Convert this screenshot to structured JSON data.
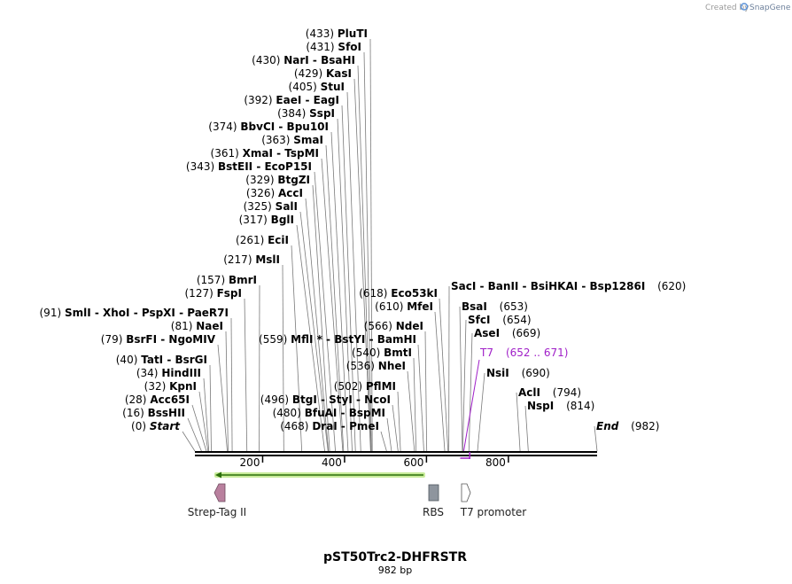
{
  "credit": {
    "prefix": "Created by",
    "brand": "SnapGene"
  },
  "title": "pST50Trc2-DHFRSTR",
  "subtitle": "982 bp",
  "sequence_length": 982,
  "ticks": [
    {
      "pos": 200,
      "label": "200"
    },
    {
      "pos": 400,
      "label": "400"
    },
    {
      "pos": 600,
      "label": "600"
    },
    {
      "pos": 800,
      "label": "800"
    }
  ],
  "orf": {
    "start": 50,
    "end": 560,
    "direction": "reverse",
    "color": "#6fc21e"
  },
  "features": [
    {
      "name": "Strep-Tag II",
      "shape": "arrow-left",
      "color": "#b9809e"
    },
    {
      "name": "RBS",
      "shape": "box",
      "color": "#8e959e"
    },
    {
      "name": "T7 promoter",
      "shape": "arrow-right",
      "color": "#ffffff"
    }
  ],
  "t7_site": {
    "name": "T7",
    "range": "(652 .. 671)",
    "start": 652,
    "end": 671,
    "color": "#a020c8"
  },
  "left_labels": [
    {
      "pos": "(433)",
      "name": "PluTI",
      "loc": 433
    },
    {
      "pos": "(431)",
      "name": "SfoI",
      "loc": 431
    },
    {
      "pos": "(430)",
      "name": "NarI  -  BsaHI",
      "loc": 430
    },
    {
      "pos": "(429)",
      "name": "KasI",
      "loc": 429
    },
    {
      "pos": "(405)",
      "name": "StuI",
      "loc": 405
    },
    {
      "pos": "(392)",
      "name": "EaeI  -  EagI",
      "loc": 392
    },
    {
      "pos": "(384)",
      "name": "SspI",
      "loc": 384
    },
    {
      "pos": "(374)",
      "name": "BbvCI  -  Bpu10I",
      "loc": 374
    },
    {
      "pos": "(363)",
      "name": "SmaI",
      "loc": 363
    },
    {
      "pos": "(361)",
      "name": "XmaI  -  TspMI",
      "loc": 361
    },
    {
      "pos": "(343)",
      "name": "BstEII  -  EcoP15I",
      "loc": 343
    },
    {
      "pos": "(329)",
      "name": "BtgZI",
      "loc": 329
    },
    {
      "pos": "(326)",
      "name": "AccI",
      "loc": 326
    },
    {
      "pos": "(325)",
      "name": "SalI",
      "loc": 325
    },
    {
      "pos": "(317)",
      "name": "BglI",
      "loc": 317
    },
    {
      "pos": "(261)",
      "name": "EciI",
      "loc": 261
    },
    {
      "pos": "(217)",
      "name": "MslI",
      "loc": 217
    },
    {
      "pos": "(157)",
      "name": "BmrI",
      "loc": 157
    },
    {
      "pos": "(127)",
      "name": "FspI",
      "loc": 127
    },
    {
      "pos": "(91)",
      "name": "SmlI  -  XhoI  -  PspXI  -  PaeR7I",
      "loc": 91
    },
    {
      "pos": "(81)",
      "name": "NaeI",
      "loc": 81
    },
    {
      "pos": "(79)",
      "name": "BsrFI  -  NgoMIV",
      "loc": 79
    },
    {
      "pos": "(40)",
      "name": "TatI  -  BsrGI",
      "loc": 40
    },
    {
      "pos": "(34)",
      "name": "HindIII",
      "loc": 34
    },
    {
      "pos": "(32)",
      "name": "KpnI",
      "loc": 32
    },
    {
      "pos": "(28)",
      "name": "Acc65I",
      "loc": 28
    },
    {
      "pos": "(16)",
      "name": "BssHII",
      "loc": 16
    },
    {
      "pos": "(0)",
      "name": "Start",
      "loc": 0,
      "italic": true
    }
  ],
  "mid_labels": [
    {
      "pos": "(559)",
      "name": "MflI *  -  BstYI  -  BamHI",
      "loc": 559
    },
    {
      "pos": "(496)",
      "name": "BtgI  -  StyI  -  NcoI",
      "loc": 496
    },
    {
      "pos": "(480)",
      "name": "BfuAI  -  BspMI",
      "loc": 480
    },
    {
      "pos": "(468)",
      "name": "DraI  -  PmeI",
      "loc": 468
    }
  ],
  "inner_labels": [
    {
      "pos": "(618)",
      "name": "Eco53kI",
      "loc": 618
    },
    {
      "pos": "(610)",
      "name": "MfeI",
      "loc": 610
    },
    {
      "pos": "(566)",
      "name": "NdeI",
      "loc": 566
    },
    {
      "pos": "(540)",
      "name": "BmtI",
      "loc": 540
    },
    {
      "pos": "(536)",
      "name": "NheI",
      "loc": 536
    },
    {
      "pos": "(502)",
      "name": "PflMI",
      "loc": 502
    }
  ],
  "right_labels": [
    {
      "pos": "(620)",
      "name": "SacI  -  BanII  -  BsiHKAI  -  Bsp1286I",
      "loc": 620
    },
    {
      "pos": "(653)",
      "name": "BsaI",
      "loc": 653
    },
    {
      "pos": "(654)",
      "name": "SfcI",
      "loc": 654
    },
    {
      "pos": "(669)",
      "name": "AseI",
      "loc": 669
    },
    {
      "pos": "(690)",
      "name": "NsiI",
      "loc": 690
    },
    {
      "pos": "(794)",
      "name": "AclI",
      "loc": 794
    },
    {
      "pos": "(814)",
      "name": "NspI",
      "loc": 814
    },
    {
      "pos": "(982)",
      "name": "End",
      "loc": 982,
      "italic": true
    }
  ]
}
